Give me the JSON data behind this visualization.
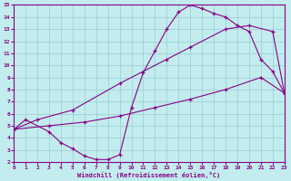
{
  "xlabel": "Windchill (Refroidissement éolien,°C)",
  "xlim": [
    0,
    23
  ],
  "ylim": [
    2,
    15
  ],
  "xticks": [
    0,
    1,
    2,
    3,
    4,
    5,
    6,
    7,
    8,
    9,
    10,
    11,
    12,
    13,
    14,
    15,
    16,
    17,
    18,
    19,
    20,
    21,
    22,
    23
  ],
  "yticks": [
    2,
    3,
    4,
    5,
    6,
    7,
    8,
    9,
    10,
    11,
    12,
    13,
    14,
    15
  ],
  "background_color": "#c2ecee",
  "grid_color": "#99cdd4",
  "line_color": "#880088",
  "curve1_x": [
    0,
    1,
    3,
    4,
    5,
    6,
    7,
    8,
    9,
    10,
    11,
    12,
    13,
    14,
    15,
    16,
    17,
    18,
    19,
    20,
    21,
    22,
    23
  ],
  "curve1_y": [
    4.7,
    5.5,
    4.5,
    3.6,
    3.1,
    2.5,
    2.2,
    2.2,
    2.6,
    6.5,
    9.4,
    11.2,
    13.0,
    14.4,
    15.0,
    14.7,
    14.3,
    14.0,
    13.3,
    12.8,
    10.5,
    9.5,
    7.7
  ],
  "curve2_x": [
    0,
    2,
    5,
    9,
    13,
    15,
    18,
    20,
    22,
    23
  ],
  "curve2_y": [
    4.7,
    5.5,
    6.3,
    8.5,
    10.5,
    11.5,
    13.0,
    13.3,
    12.8,
    7.7
  ],
  "curve3_x": [
    0,
    3,
    6,
    9,
    12,
    15,
    18,
    21,
    23
  ],
  "curve3_y": [
    4.7,
    5.0,
    5.3,
    5.8,
    6.5,
    7.2,
    8.0,
    9.0,
    7.7
  ]
}
